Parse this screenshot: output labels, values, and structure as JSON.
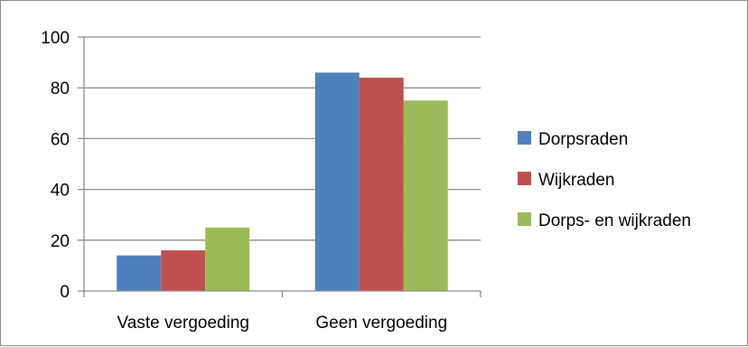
{
  "chart_data": {
    "type": "bar",
    "categories": [
      "Vaste vergoeding",
      "Geen vergoeding"
    ],
    "series": [
      {
        "name": "Dorpsraden",
        "values": [
          14,
          86
        ],
        "color": "#4f81bd"
      },
      {
        "name": "Wijkraden",
        "values": [
          16,
          84
        ],
        "color": "#c0504d"
      },
      {
        "name": "Dorps- en wijkraden",
        "values": [
          25,
          75
        ],
        "color": "#9bbb59"
      }
    ],
    "yticks": [
      0,
      20,
      40,
      60,
      80,
      100
    ],
    "ylim": [
      0,
      100
    ],
    "grid": true,
    "legend": "right",
    "title": "",
    "xlabel": "",
    "ylabel": ""
  }
}
